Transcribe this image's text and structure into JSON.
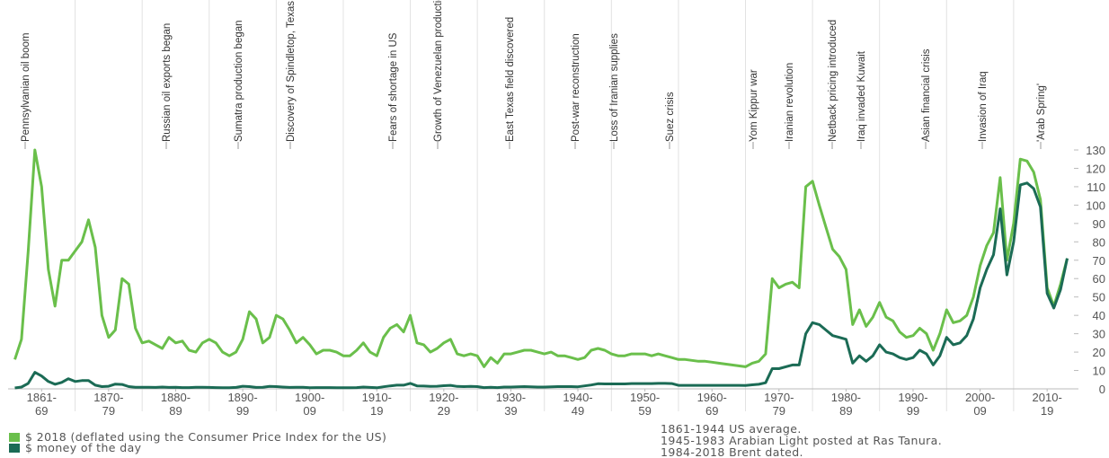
{
  "chart_data": {
    "type": "line",
    "annotations": [
      "Pennsylvanian oil boom",
      "Russian oil exports began",
      "Sumatra production began",
      "Discovery of Spindletop, Texas",
      "Fears of shortage in US",
      "Growth of Venezuelan production",
      "East Texas field discovered",
      "Post-war reconstruction",
      "Loss of Iranian supplies",
      "Suez crisis",
      "Yom Kippur war",
      "Iranian revolution",
      "Netback pricing introduced",
      "Iraq invaded Kuwait",
      "Asian financial crisis",
      "Invasion of Iraq",
      "'Arab Spring'"
    ],
    "x": [
      1861,
      1862,
      1863,
      1864,
      1865,
      1866,
      1867,
      1868,
      1869,
      1870,
      1871,
      1872,
      1873,
      1874,
      1875,
      1876,
      1877,
      1878,
      1879,
      1880,
      1881,
      1882,
      1883,
      1884,
      1885,
      1886,
      1887,
      1888,
      1889,
      1890,
      1891,
      1892,
      1893,
      1894,
      1895,
      1896,
      1897,
      1898,
      1899,
      1900,
      1901,
      1902,
      1903,
      1904,
      1905,
      1906,
      1907,
      1908,
      1909,
      1910,
      1911,
      1912,
      1913,
      1914,
      1915,
      1916,
      1917,
      1918,
      1919,
      1920,
      1921,
      1922,
      1923,
      1924,
      1925,
      1926,
      1927,
      1928,
      1929,
      1930,
      1931,
      1932,
      1933,
      1934,
      1935,
      1936,
      1937,
      1938,
      1939,
      1940,
      1941,
      1942,
      1943,
      1944,
      1945,
      1946,
      1947,
      1948,
      1949,
      1950,
      1951,
      1952,
      1953,
      1954,
      1955,
      1956,
      1957,
      1958,
      1959,
      1960,
      1961,
      1962,
      1963,
      1964,
      1965,
      1966,
      1967,
      1968,
      1969,
      1970,
      1971,
      1972,
      1973,
      1974,
      1975,
      1976,
      1977,
      1978,
      1979,
      1980,
      1981,
      1982,
      1983,
      1984,
      1985,
      1986,
      1987,
      1988,
      1989,
      1990,
      1991,
      1992,
      1993,
      1994,
      1995,
      1996,
      1997,
      1998,
      1999,
      2000,
      2001,
      2002,
      2003,
      2004,
      2005,
      2006,
      2007,
      2008,
      2009,
      2010,
      2011,
      2012,
      2013,
      2014,
      2015,
      2016,
      2017,
      2018
    ],
    "series": [
      {
        "name": "$ 2018 (deflated using the Consumer Price Index for the US)",
        "color": "#6abf4b",
        "values": [
          16,
          27,
          75,
          130,
          110,
          65,
          45,
          70,
          70,
          75,
          80,
          92,
          77,
          40,
          28,
          32,
          60,
          57,
          33,
          25,
          26,
          24,
          22,
          28,
          25,
          26,
          21,
          20,
          25,
          27,
          25,
          20,
          18,
          20,
          27,
          42,
          38,
          25,
          28,
          40,
          38,
          32,
          25,
          28,
          24,
          19,
          21,
          21,
          20,
          18,
          18,
          21,
          25,
          20,
          18,
          28,
          33,
          35,
          31,
          40,
          25,
          24,
          20,
          22,
          25,
          27,
          19,
          18,
          19,
          18,
          12,
          17,
          14,
          19,
          19,
          20,
          21,
          21,
          20,
          19,
          20,
          18,
          18,
          17,
          16,
          17,
          21,
          22,
          21,
          19,
          18,
          18,
          19,
          19,
          19,
          18,
          19,
          18,
          17,
          16,
          16,
          15.5,
          15,
          15,
          14.5,
          14,
          13.5,
          13,
          12.5,
          12,
          14,
          15,
          19,
          60,
          55,
          57,
          58,
          55,
          110,
          113,
          100,
          88,
          76,
          72,
          65,
          35,
          43,
          34,
          39,
          47,
          39,
          37,
          31,
          28,
          29,
          33,
          30,
          21,
          30,
          43,
          36,
          37,
          40,
          50,
          67,
          78,
          85,
          115,
          70,
          90,
          125,
          124,
          118,
          103,
          55,
          45,
          57,
          71
        ]
      },
      {
        "name": "$ money of the day",
        "color": "#1b6b55",
        "values": [
          0.5,
          1,
          3,
          9,
          7,
          4,
          2.5,
          3.5,
          5.5,
          4,
          4.5,
          4.5,
          2,
          1.2,
          1.4,
          2.6,
          2.4,
          1.2,
          0.9,
          0.9,
          0.9,
          0.8,
          1,
          0.8,
          0.9,
          0.7,
          0.7,
          0.9,
          0.9,
          0.8,
          0.7,
          0.6,
          0.6,
          0.8,
          1.4,
          1.2,
          0.8,
          0.9,
          1.3,
          1.2,
          1,
          0.8,
          0.9,
          0.9,
          0.6,
          0.7,
          0.7,
          0.7,
          0.6,
          0.6,
          0.6,
          0.7,
          1,
          0.8,
          0.6,
          1.1,
          1.6,
          2,
          2,
          3,
          1.6,
          1.5,
          1.3,
          1.4,
          1.7,
          1.9,
          1.3,
          1.2,
          1.3,
          1.2,
          0.7,
          0.9,
          0.7,
          1,
          1,
          1.1,
          1.2,
          1.1,
          1,
          1,
          1.1,
          1.2,
          1.2,
          1.2,
          1.1,
          1.6,
          2.1,
          2.8,
          2.7,
          2.7,
          2.7,
          2.7,
          2.9,
          2.9,
          2.9,
          2.9,
          3,
          3,
          2.9,
          1.9,
          1.9,
          1.9,
          1.9,
          1.9,
          1.9,
          1.9,
          1.9,
          1.9,
          1.9,
          1.8,
          2.2,
          2.5,
          3.3,
          11,
          11,
          12,
          13,
          13,
          30,
          36,
          35,
          32,
          29,
          28,
          27,
          14,
          18,
          15,
          18,
          24,
          20,
          19,
          17,
          16,
          17,
          21,
          19,
          13,
          18,
          28,
          24,
          25,
          29,
          38,
          55,
          65,
          73,
          98,
          62,
          80,
          111,
          112,
          109,
          99,
          52,
          44,
          54,
          71
        ]
      }
    ],
    "xlim": [
      1860,
      2019
    ],
    "xticks": [
      {
        "value": 1865,
        "label": [
          "1861-",
          "69"
        ]
      },
      {
        "value": 1875,
        "label": [
          "1870-",
          "79"
        ]
      },
      {
        "value": 1885,
        "label": [
          "1880-",
          "89"
        ]
      },
      {
        "value": 1895,
        "label": [
          "1890-",
          "99"
        ]
      },
      {
        "value": 1905,
        "label": [
          "1900-",
          "09"
        ]
      },
      {
        "value": 1915,
        "label": [
          "1910-",
          "19"
        ]
      },
      {
        "value": 1925,
        "label": [
          "1920-",
          "29"
        ]
      },
      {
        "value": 1935,
        "label": [
          "1930-",
          "39"
        ]
      },
      {
        "value": 1945,
        "label": [
          "1940-",
          "49"
        ]
      },
      {
        "value": 1955,
        "label": [
          "1950-",
          "59"
        ]
      },
      {
        "value": 1965,
        "label": [
          "1960-",
          "69"
        ]
      },
      {
        "value": 1975,
        "label": [
          "1970-",
          "79"
        ]
      },
      {
        "value": 1985,
        "label": [
          "1980-",
          "89"
        ]
      },
      {
        "value": 1995,
        "label": [
          "1990-",
          "99"
        ]
      },
      {
        "value": 2005,
        "label": [
          "2000-",
          "09"
        ]
      },
      {
        "value": 2015,
        "label": [
          "2010-",
          "19"
        ]
      }
    ],
    "xgrid": [
      1870,
      1880,
      1890,
      1900,
      1910,
      1920,
      1930,
      1940,
      1950,
      1960,
      1970,
      1980,
      1990,
      2000,
      2010
    ],
    "ylim": [
      0,
      130
    ],
    "yticks": [
      0,
      10,
      20,
      30,
      40,
      50,
      60,
      70,
      80,
      90,
      100,
      110,
      120,
      130
    ],
    "notes": [
      "1861-1944 US average.",
      "1945-1983 Arabian Light posted at Ras Tanura.",
      "1984-2018 Brent dated."
    ]
  }
}
